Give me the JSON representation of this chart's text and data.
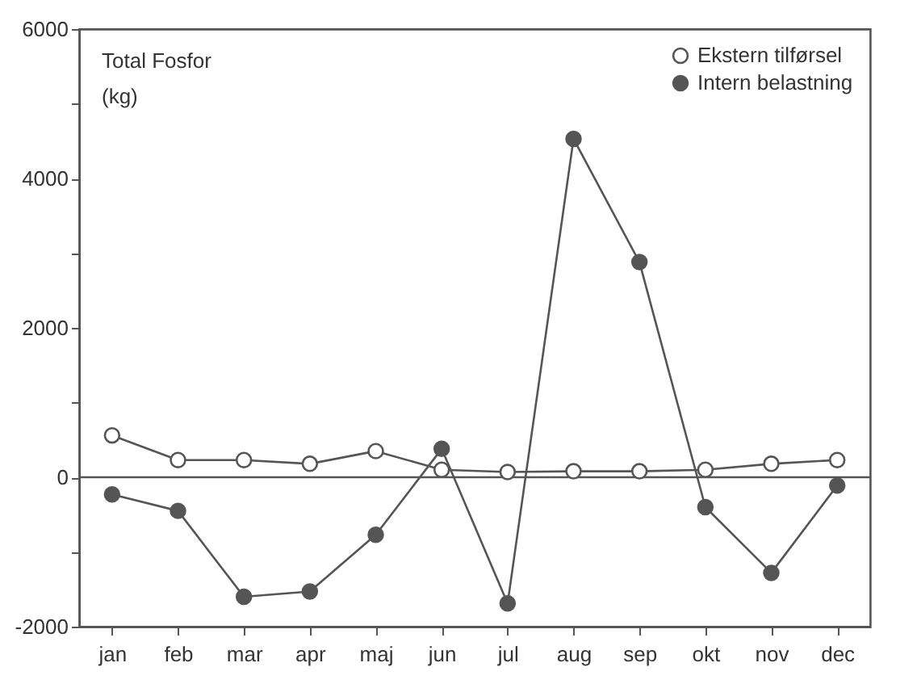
{
  "chart_data": {
    "type": "line",
    "annotations": [
      "Total Fosfor",
      "(kg)"
    ],
    "categories": [
      "jan",
      "feb",
      "mar",
      "apr",
      "maj",
      "jun",
      "jul",
      "aug",
      "sep",
      "okt",
      "nov",
      "dec"
    ],
    "series": [
      {
        "name": "Ekstern tilførsel",
        "color": "#ffffff",
        "values": [
          560,
          230,
          230,
          180,
          350,
          100,
          70,
          80,
          80,
          100,
          180,
          230
        ]
      },
      {
        "name": "Intern belastning",
        "color": "#555555",
        "values": [
          -230,
          -450,
          -1600,
          -1530,
          -770,
          380,
          -1690,
          4530,
          2880,
          -400,
          -1280,
          -110
        ]
      }
    ],
    "ylim": [
      -2000,
      6000
    ],
    "yticks": [
      -2000,
      {
        "value": -1000,
        "label": null
      },
      0,
      {
        "value": 1000,
        "label": null
      },
      2000,
      {
        "value": 3000,
        "label": null
      },
      4000,
      {
        "value": 5000,
        "label": null
      },
      6000
    ],
    "ref_lines": [
      {
        "axis": "y",
        "value": 0
      }
    ],
    "grid": false,
    "legend": "top right",
    "marker": "circle",
    "line_style": "solid"
  }
}
